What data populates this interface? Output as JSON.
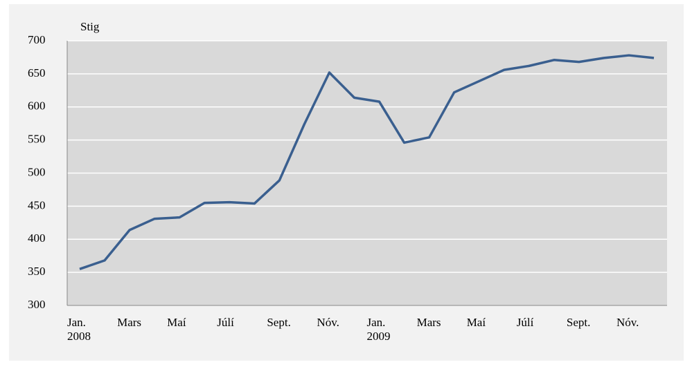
{
  "chart_data": {
    "type": "line",
    "y_label": "Stig",
    "categories": [
      "Jan.\n2008",
      null,
      "Mars",
      null,
      "Maí",
      null,
      "Júlí",
      null,
      "Sept.",
      null,
      "Nóv.",
      null,
      "Jan.\n2009",
      null,
      "Mars",
      null,
      "Maí",
      null,
      "Júlí",
      null,
      "Sept.",
      null,
      "Nóv.",
      null
    ],
    "series": [
      {
        "name": "Stig",
        "color": "#3a5f8f",
        "values": [
          355,
          368,
          414,
          431,
          433,
          455,
          456,
          454,
          489,
          574,
          652,
          614,
          608,
          546,
          554,
          622,
          639,
          656,
          662,
          671,
          668,
          674,
          678,
          674
        ]
      }
    ],
    "ylim": [
      300,
      700
    ],
    "yticks": [
      300,
      350,
      400,
      450,
      500,
      550,
      600,
      650,
      700
    ],
    "grid": true
  }
}
